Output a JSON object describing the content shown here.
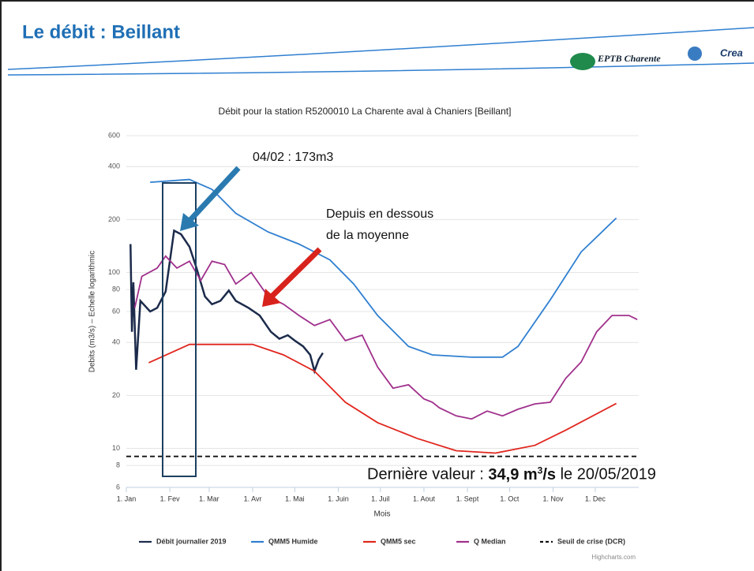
{
  "slide": {
    "title": "Le débit : Beillant",
    "logos": [
      "EPTB Charente",
      "Crea"
    ]
  },
  "chart_data": {
    "type": "line",
    "title": "Débit pour la station R5200010 La Charente aval à Chaniers [Beillant]",
    "y_label": "Debits (m3/s) – Echelle logarithmic",
    "x_label": "Mois",
    "yscale": "log",
    "grid": true,
    "legend": "bottom",
    "credit": "Highcharts.com",
    "ylim": [
      6,
      600
    ],
    "yticks": [
      6,
      8,
      10,
      20,
      40,
      60,
      80,
      100,
      200,
      400,
      600
    ],
    "xlim": [
      0,
      365
    ],
    "xticks": [
      {
        "value": 0,
        "label": "1. Jan"
      },
      {
        "value": 31,
        "label": "1. Fev"
      },
      {
        "value": 59,
        "label": "1. Mar"
      },
      {
        "value": 90,
        "label": "1. Avr"
      },
      {
        "value": 120,
        "label": "1. Mai"
      },
      {
        "value": 151,
        "label": "1. Juin"
      },
      {
        "value": 181,
        "label": "1. Juil"
      },
      {
        "value": 212,
        "label": "1. Aout"
      },
      {
        "value": 243,
        "label": "1. Sept"
      },
      {
        "value": 273,
        "label": "1. Oct"
      },
      {
        "value": 304,
        "label": "1. Nov"
      },
      {
        "value": 334,
        "label": "1. Dec"
      }
    ],
    "series": [
      {
        "name": "Débit journalier 2019",
        "color": "#1c2b4b",
        "x": [
          3,
          4,
          5,
          7,
          10,
          17,
          22,
          28,
          34,
          39,
          45,
          50,
          56,
          61,
          67,
          73,
          78,
          87,
          95,
          103,
          109,
          115,
          120,
          126,
          131,
          134,
          137,
          140
        ],
        "values": [
          145,
          46,
          88,
          28,
          69,
          60,
          63,
          78,
          173,
          165,
          140,
          106,
          73,
          66,
          69,
          79,
          69,
          63,
          57,
          46,
          42,
          44,
          41,
          38,
          34,
          27.5,
          32,
          34.9
        ]
      },
      {
        "name": "QMM5 Humide",
        "color": "#2f7fd0",
        "x": [
          17,
          45,
          61,
          78,
          101,
          123,
          145,
          162,
          179,
          201,
          218,
          246,
          268,
          279,
          302,
          324,
          349
        ],
        "values": [
          326,
          338,
          297,
          217,
          170,
          145,
          118,
          86,
          57,
          38,
          34,
          33,
          33,
          38,
          70,
          131,
          204
        ]
      },
      {
        "name": "QMM5 sec",
        "color": "#e0261e",
        "x": [
          16,
          45,
          90,
          112,
          134,
          156,
          179,
          207,
          235,
          263,
          291,
          313,
          349
        ],
        "values": [
          30.7,
          39,
          39,
          34,
          27.5,
          18.3,
          14,
          11.4,
          9.7,
          9.4,
          10.4,
          12.7,
          18
        ]
      },
      {
        "name": "Q Median",
        "color": "#a0308c",
        "x": [
          6,
          11,
          22,
          28,
          36,
          45,
          53,
          61,
          70,
          78,
          89,
          101,
          112,
          123,
          134,
          145,
          156,
          168,
          179,
          190,
          201,
          212,
          218,
          223,
          235,
          246,
          257,
          268,
          279,
          291,
          302,
          313,
          324,
          335,
          346,
          358,
          364
        ],
        "values": [
          63,
          95,
          106,
          124,
          106,
          116,
          90,
          116,
          111,
          86,
          100,
          73,
          66,
          57,
          50,
          54,
          41,
          44,
          29,
          22,
          23,
          19.1,
          18.3,
          17,
          15.3,
          14.7,
          16.3,
          15.3,
          16.7,
          17.9,
          18.3,
          25,
          31,
          46,
          57,
          57,
          54
        ]
      },
      {
        "name": "Seuil de crise (DCR)",
        "color": "#111111",
        "dash": true,
        "x": [
          0,
          364
        ],
        "values": [
          9,
          9
        ]
      }
    ],
    "annotations": [
      "04/02 : 173m3",
      "Depuis en dessous",
      "de la moyenne"
    ],
    "last_value": {
      "prefix": "Dernière valeur :",
      "value": "34,9 m",
      "sup": "3",
      "unit": "/s",
      "suffix": "le 20/05/2019"
    }
  }
}
